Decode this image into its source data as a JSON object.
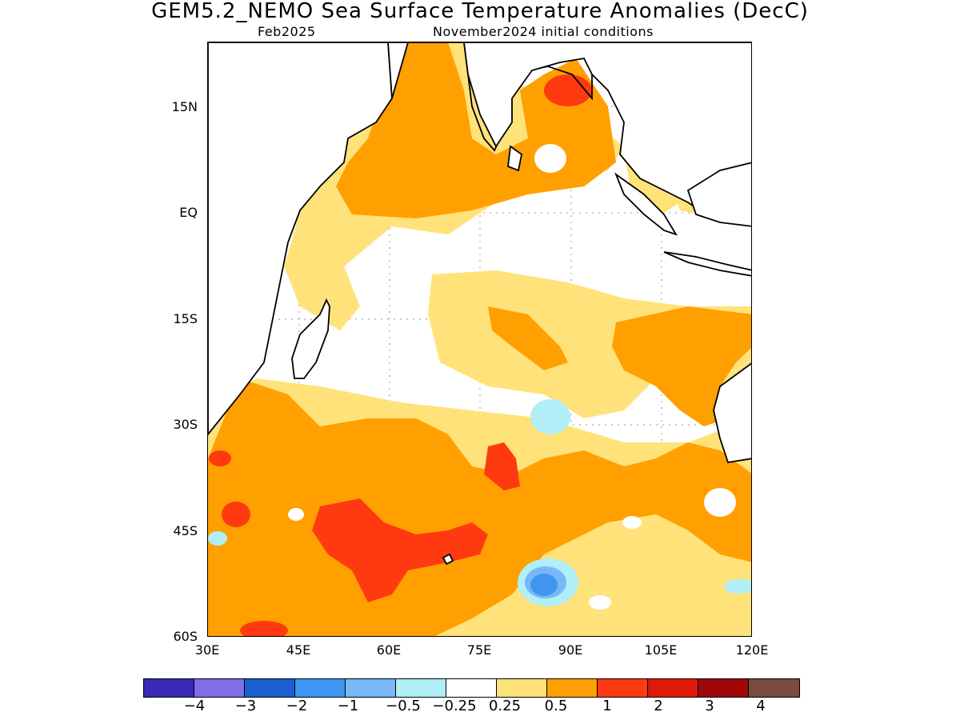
{
  "title": "GEM5.2_NEMO Sea Surface Temperature Anomalies (DecC)",
  "valid_month": "Feb2025",
  "init_label": "November2024 initial conditions",
  "lat_labels": [
    "15N",
    "EQ",
    "15S",
    "30S",
    "45S",
    "60S"
  ],
  "lon_labels": [
    "30E",
    "45E",
    "60E",
    "75E",
    "90E",
    "105E",
    "120E"
  ],
  "colorbar": {
    "colors": [
      "#3a28b8",
      "#7f6ee8",
      "#1a5fd0",
      "#3f96f0",
      "#78b8f8",
      "#b0eef8",
      "#ffffff",
      "#ffe27a",
      "#ffa000",
      "#ff3a10",
      "#e01808",
      "#a00808",
      "#7a4a3c"
    ],
    "labels": [
      "−4",
      "−3",
      "−2",
      "−1",
      "−0.5",
      "−0.25",
      "0.25",
      "0.5",
      "1",
      "2",
      "3",
      "4"
    ]
  },
  "map_colors": {
    "ocean": "#ffffff",
    "light": "#ffe27a",
    "orange": "#ffa000",
    "red": "#ff3a10",
    "lightblue": "#b0eef8",
    "blue": "#78b8f8",
    "midblue": "#3f96f0",
    "coast": "#000000"
  }
}
